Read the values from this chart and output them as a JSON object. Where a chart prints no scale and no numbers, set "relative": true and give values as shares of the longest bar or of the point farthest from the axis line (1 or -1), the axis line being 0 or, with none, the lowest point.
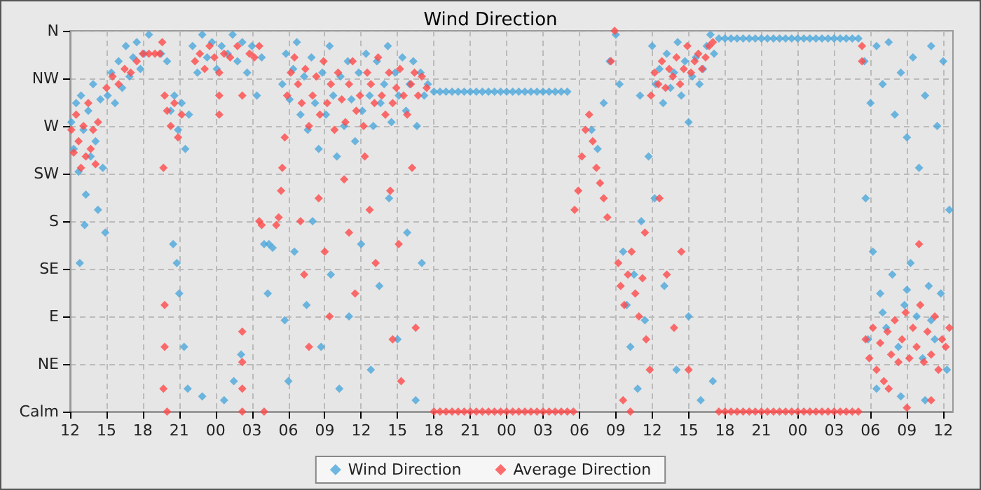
{
  "chart_data": {
    "type": "scatter",
    "title": "Wind Direction",
    "marker": "diamond",
    "grid": true,
    "legend": "bottom",
    "relative": true,
    "xlim": [
      12,
      84.8
    ],
    "xticks": [
      {
        "value": 12,
        "label": "12"
      },
      {
        "value": 15,
        "label": "15"
      },
      {
        "value": 18,
        "label": "18"
      },
      {
        "value": 21,
        "label": "21"
      },
      {
        "value": 24,
        "label": "00"
      },
      {
        "value": 27,
        "label": "03"
      },
      {
        "value": 30,
        "label": "06"
      },
      {
        "value": 33,
        "label": "09"
      },
      {
        "value": 36,
        "label": "12"
      },
      {
        "value": 39,
        "label": "15"
      },
      {
        "value": 42,
        "label": "18"
      },
      {
        "value": 45,
        "label": "21"
      },
      {
        "value": 48,
        "label": "00"
      },
      {
        "value": 51,
        "label": "03"
      },
      {
        "value": 54,
        "label": "06"
      },
      {
        "value": 57,
        "label": "09"
      },
      {
        "value": 60,
        "label": "12"
      },
      {
        "value": 63,
        "label": "15"
      },
      {
        "value": 66,
        "label": "18"
      },
      {
        "value": 69,
        "label": "21"
      },
      {
        "value": 72,
        "label": "00"
      },
      {
        "value": 75,
        "label": "03"
      },
      {
        "value": 78,
        "label": "06"
      },
      {
        "value": 81,
        "label": "09"
      },
      {
        "value": 84,
        "label": "12"
      }
    ],
    "y_categories": [
      "N",
      "NW",
      "W",
      "SW",
      "S",
      "SE",
      "E",
      "NE",
      "Calm"
    ],
    "series": [
      {
        "name": "Wind Direction",
        "color": "#4ba8dc",
        "x": [
          12.1,
          12.3,
          12.5,
          12.7,
          12.9,
          13.1,
          13.3,
          13.5,
          13.7,
          13.9,
          14.1,
          14.3,
          14.5,
          14.7,
          14.9,
          13.2,
          12.8,
          15.1,
          15.4,
          15.7,
          16.0,
          16.3,
          16.6,
          16.9,
          17.2,
          17.5,
          17.8,
          18.1,
          18.5,
          19.0,
          19.5,
          20.0,
          20.3,
          20.6,
          20.9,
          21.2,
          21.5,
          21.8,
          20.5,
          20.8,
          21.0,
          21.4,
          21.7,
          22.1,
          22.5,
          22.9,
          23.3,
          23.7,
          24.1,
          24.5,
          25.0,
          25.4,
          25.8,
          26.2,
          26.6,
          27.0,
          27.4,
          27.8,
          28.0,
          28.4,
          28.3,
          28.7,
          25.5,
          26.1,
          24.7,
          22.9,
          29.5,
          29.8,
          30.1,
          30.4,
          30.7,
          31.0,
          31.3,
          31.6,
          31.9,
          32.2,
          32.5,
          32.8,
          33.1,
          33.4,
          33.7,
          34.0,
          34.3,
          34.6,
          34.9,
          35.2,
          35.5,
          35.8,
          36.1,
          36.4,
          36.7,
          37.0,
          37.3,
          37.6,
          37.9,
          38.2,
          38.5,
          38.8,
          39.1,
          39.4,
          39.7,
          40.0,
          40.3,
          40.6,
          40.9,
          41.2,
          41.5,
          30.5,
          31.5,
          32.0,
          32.7,
          33.5,
          34.2,
          35.0,
          36.0,
          36.8,
          37.5,
          38.3,
          39.0,
          39.8,
          40.5,
          41.0,
          30.0,
          29.7,
          42,
          42.5,
          43,
          43.5,
          44,
          44.5,
          45,
          45.5,
          46,
          46.5,
          47,
          47.5,
          48,
          48.5,
          49,
          49.5,
          50,
          50.5,
          51,
          51.5,
          52,
          52.5,
          53,
          55.0,
          55.5,
          56.0,
          56.5,
          57.0,
          57.3,
          57.6,
          57.9,
          58.2,
          58.5,
          58.8,
          59.1,
          59.4,
          59.7,
          60.0,
          60.3,
          60.6,
          60.9,
          61.2,
          61.5,
          61.8,
          62.1,
          62.4,
          62.7,
          63.0,
          63.3,
          63.6,
          63.9,
          64.2,
          64.5,
          64.8,
          65.1,
          59.0,
          60.2,
          61.0,
          62.0,
          63.0,
          64.0,
          65.0,
          65.5,
          66,
          66.5,
          67,
          67.5,
          68,
          68.5,
          69,
          69.5,
          70,
          70.5,
          71,
          71.5,
          72,
          72.5,
          73,
          73.5,
          74,
          74.5,
          75,
          75.5,
          76,
          76.5,
          77,
          77.5,
          78.0,
          78.5,
          79.0,
          79.5,
          80.0,
          80.5,
          81.0,
          81.5,
          82.0,
          82.5,
          83.0,
          83.5,
          84.0,
          84.5,
          77.6,
          78.2,
          78.8,
          79.3,
          79.8,
          80.3,
          80.8,
          81.3,
          81.8,
          82.3,
          82.8,
          83.3,
          83.8,
          84.3,
          78.5,
          80.5,
          82.5,
          77.8,
          79.0,
          81.0,
          83.0
        ],
        "values": [
          0.76,
          0.69,
          0.81,
          0.63,
          0.83,
          0.74,
          0.57,
          0.79,
          0.67,
          0.86,
          0.71,
          0.53,
          0.82,
          0.64,
          0.47,
          0.49,
          0.39,
          0.83,
          0.89,
          0.81,
          0.92,
          0.85,
          0.96,
          0.88,
          0.93,
          0.97,
          0.9,
          0.94,
          0.99,
          null,
          0.94,
          0.92,
          0.79,
          0.83,
          0.74,
          0.81,
          0.69,
          0.78,
          0.44,
          0.39,
          0.31,
          0.17,
          0.06,
          0.96,
          0.89,
          0.99,
          0.93,
          0.97,
          0.9,
          0.96,
          0.94,
          0.99,
          0.92,
          0.97,
          0.89,
          0.96,
          0.83,
          0.93,
          0.44,
          0.44,
          0.31,
          0.43,
          0.08,
          0.15,
          0.03,
          0.04,
          0.86,
          0.94,
          0.82,
          0.9,
          0.97,
          0.78,
          0.88,
          0.74,
          0.93,
          0.81,
          0.69,
          0.89,
          0.78,
          0.96,
          0.83,
          0.67,
          0.88,
          0.75,
          0.92,
          0.82,
          0.71,
          0.89,
          0.79,
          0.94,
          0.83,
          0.75,
          0.92,
          0.81,
          0.86,
          0.96,
          0.76,
          0.89,
          0.83,
          0.93,
          0.79,
          0.86,
          0.92,
          0.75,
          0.89,
          0.83,
          0.86,
          0.42,
          0.28,
          0.5,
          0.17,
          0.36,
          0.06,
          0.25,
          0.44,
          0.11,
          0.33,
          0.56,
          0.19,
          0.47,
          0.03,
          0.39,
          0.08,
          0.24,
          0.84,
          0.84,
          0.84,
          0.84,
          0.84,
          0.84,
          0.84,
          0.84,
          0.84,
          0.84,
          0.84,
          0.84,
          0.84,
          0.84,
          0.84,
          0.84,
          0.84,
          0.84,
          0.84,
          0.84,
          0.84,
          0.84,
          0.84,
          0.74,
          0.69,
          0.81,
          0.92,
          0.99,
          0.86,
          0.42,
          0.28,
          0.17,
          0.36,
          0.06,
          0.5,
          0.24,
          0.67,
          0.96,
          0.86,
          0.9,
          0.81,
          0.94,
          0.85,
          0.89,
          0.97,
          0.83,
          0.92,
          0.76,
          0.88,
          0.93,
          0.86,
          0.9,
          0.96,
          0.99,
          0.94,
          0.83,
          0.56,
          0.33,
          0.11,
          0.25,
          0.03,
          0.08,
          0.98,
          0.98,
          0.98,
          0.98,
          0.98,
          0.98,
          0.98,
          0.98,
          0.98,
          0.98,
          0.98,
          0.98,
          0.98,
          0.98,
          0.98,
          0.98,
          0.98,
          0.98,
          0.98,
          0.98,
          0.98,
          0.98,
          0.98,
          0.98,
          0.92,
          0.81,
          0.96,
          0.86,
          0.97,
          0.78,
          0.89,
          0.72,
          0.93,
          0.64,
          0.83,
          0.96,
          0.75,
          0.92,
          0.53,
          0.56,
          0.42,
          0.31,
          0.22,
          0.36,
          0.17,
          0.28,
          0.39,
          0.25,
          0.14,
          0.33,
          0.19,
          0.31,
          0.11,
          0.06,
          0.04,
          0.03,
          0.19,
          0.26,
          0.32,
          0.24
        ]
      },
      {
        "name": "Average Direction",
        "color": "#ff4a4a",
        "x": [
          12.1,
          12.3,
          12.5,
          12.7,
          12.9,
          13.1,
          13.3,
          13.5,
          13.7,
          13.9,
          14.1,
          14.3,
          15.0,
          15.5,
          16.0,
          16.5,
          17.0,
          17.5,
          18.0,
          18.5,
          19.0,
          19.4,
          19.6,
          19.8,
          20.0,
          20.3,
          20.6,
          20.9,
          21.2,
          19.7,
          19.8,
          19.8,
          19.7,
          20.0,
          22.3,
          22.7,
          23.1,
          23.5,
          23.9,
          24.3,
          24.3,
          24.3,
          24.7,
          25.2,
          25.8,
          26.2,
          26.2,
          26.2,
          26.2,
          26.2,
          26.8,
          27.2,
          27.6,
          27.6,
          27.8,
          28.0,
          29.0,
          29.2,
          29.4,
          29.5,
          29.7,
          29.9,
          30.2,
          30.5,
          30.8,
          31.1,
          31.4,
          31.7,
          32.0,
          32.3,
          32.6,
          32.9,
          33.2,
          33.5,
          33.8,
          34.1,
          34.4,
          34.7,
          35.0,
          35.3,
          35.6,
          35.9,
          36.2,
          36.5,
          36.8,
          37.1,
          37.4,
          37.7,
          38.0,
          38.3,
          38.6,
          38.9,
          39.2,
          39.5,
          39.8,
          40.1,
          40.4,
          40.7,
          41.0,
          41.4,
          31.0,
          31.3,
          31.7,
          32.5,
          33.0,
          33.4,
          34.6,
          35.0,
          35.5,
          36.3,
          36.7,
          37.2,
          38.4,
          38.6,
          39.1,
          39.3,
          40.2,
          40.5,
          42,
          42.5,
          43,
          43.5,
          44,
          44.5,
          45,
          45.5,
          46,
          46.5,
          47,
          47.5,
          48,
          48.5,
          49,
          49.5,
          50,
          50.5,
          51,
          51.5,
          52,
          52.5,
          53,
          53.5,
          53.6,
          53.9,
          54.2,
          54.5,
          54.8,
          55.1,
          55.4,
          55.7,
          56.0,
          56.3,
          56.6,
          56.9,
          57.2,
          57.4,
          57.7,
          58.0,
          58.3,
          58.6,
          58.9,
          59.2,
          59.5,
          59.8,
          57.6,
          58.2,
          59.4,
          59.9,
          60.2,
          60.5,
          60.8,
          61.1,
          61.4,
          61.7,
          62.0,
          62.3,
          62.6,
          62.9,
          63.2,
          63.5,
          63.8,
          64.1,
          64.4,
          64.7,
          65.0,
          60.6,
          61.2,
          61.8,
          62.4,
          63.0,
          65.5,
          66,
          66.5,
          67,
          67.5,
          68,
          68.5,
          69,
          69.5,
          70,
          70.5,
          71,
          71.5,
          72,
          72.5,
          73,
          73.5,
          74,
          74.5,
          75,
          75.5,
          76,
          76.5,
          77,
          77.3,
          77.3,
          77.6,
          77.9,
          78.2,
          78.5,
          78.8,
          79.1,
          79.4,
          79.7,
          80.0,
          80.3,
          80.6,
          80.9,
          81.2,
          81.5,
          81.8,
          82.1,
          82.4,
          82.7,
          83.0,
          83.3,
          83.6,
          83.9,
          84.2,
          84.5,
          82.0,
          83.0,
          81.0,
          79.5
        ],
        "values": [
          0.74,
          0.68,
          0.78,
          0.71,
          0.64,
          0.75,
          0.67,
          0.81,
          0.69,
          0.74,
          0.65,
          0.76,
          0.85,
          0.88,
          0.86,
          0.9,
          0.89,
          0.92,
          0.94,
          0.94,
          0.94,
          0.94,
          0.97,
          0.83,
          0.79,
          0.75,
          0.81,
          0.72,
          0.78,
          0.64,
          0.28,
          0.17,
          0.06,
          0,
          0.92,
          0.94,
          0.9,
          0.96,
          0.93,
          0.83,
          0.78,
          0.89,
          0.94,
          0.93,
          0.96,
          0.83,
          0.21,
          0.13,
          0.06,
          0,
          0.94,
          0.93,
          0.96,
          0.5,
          0.49,
          0,
          0.49,
          0.51,
          0.58,
          0.64,
          0.72,
          0.83,
          0.89,
          0.93,
          0.86,
          0.81,
          0.9,
          0.75,
          0.83,
          0.88,
          0.78,
          0.92,
          0.81,
          0.86,
          0.74,
          0.89,
          0.82,
          0.76,
          0.86,
          0.92,
          0.79,
          0.83,
          0.75,
          0.89,
          0.86,
          0.81,
          0.93,
          0.83,
          0.78,
          0.89,
          0.81,
          0.85,
          0.9,
          0.83,
          0.78,
          0.86,
          0.89,
          0.83,
          0.88,
          0.85,
          0.5,
          0.36,
          0.17,
          0.56,
          0.42,
          0.25,
          0.61,
          0.47,
          0.31,
          0.67,
          0.53,
          0.39,
          0.58,
          0.19,
          0.44,
          0.08,
          0.64,
          0.22,
          0,
          0,
          0,
          0,
          0,
          0,
          0,
          0,
          0,
          0,
          0,
          0,
          0,
          0,
          0,
          0,
          0,
          0,
          0,
          0,
          0,
          0,
          0,
          0,
          0.53,
          0.58,
          0.67,
          0.74,
          0.78,
          0.71,
          0.64,
          0.6,
          0.56,
          0.51,
          0.92,
          1,
          0.39,
          0.33,
          0.28,
          0.36,
          0.42,
          0.31,
          0.25,
          0.35,
          0.19,
          0.11,
          0.03,
          0,
          0.47,
          0.83,
          0.89,
          0.86,
          0.92,
          0.85,
          0.9,
          0.88,
          0.93,
          0.86,
          0.9,
          0.96,
          0.89,
          0.92,
          0.94,
          0.9,
          0.93,
          0.96,
          0.97,
          0.56,
          0.36,
          0.22,
          0.42,
          0.11,
          0,
          0,
          0,
          0,
          0,
          0,
          0,
          0,
          0,
          0,
          0,
          0,
          0,
          0,
          0,
          0,
          0,
          0,
          0,
          0,
          0,
          0,
          0,
          0,
          0.96,
          0.92,
          0.19,
          0.14,
          0.22,
          0.11,
          0.18,
          0.08,
          0.21,
          0.15,
          0.24,
          0.13,
          0.19,
          0.26,
          0.14,
          0.22,
          0.17,
          0.28,
          0.13,
          0.21,
          0.15,
          0.25,
          0.11,
          0.19,
          0.17,
          0.22,
          0.44,
          0.03,
          0.01,
          0.06
        ]
      }
    ]
  }
}
